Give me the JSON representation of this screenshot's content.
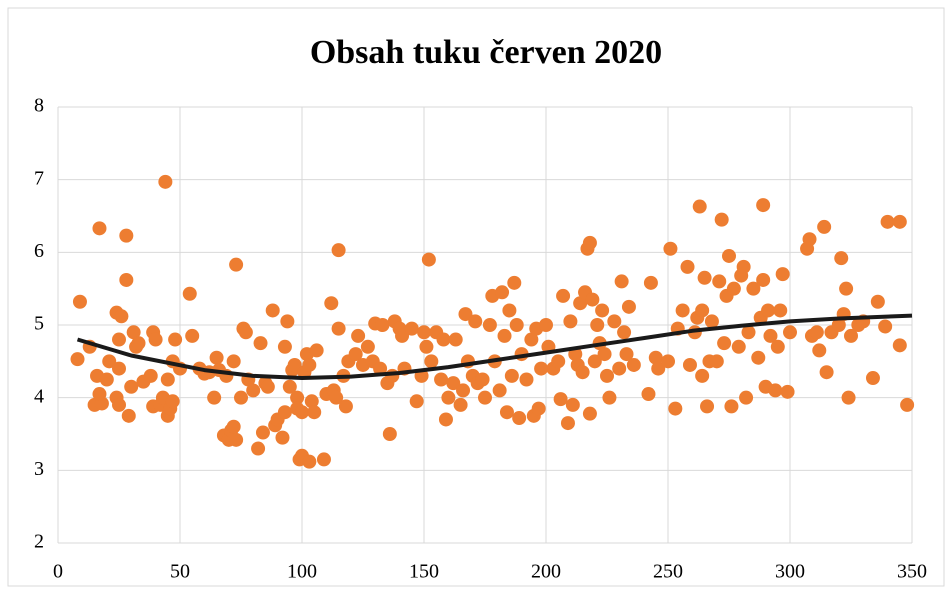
{
  "chart_data": {
    "type": "scatter",
    "title": "Obsah tuku červen 2020",
    "xlim": [
      0,
      350
    ],
    "xticks": [
      0,
      50,
      100,
      150,
      200,
      250,
      300,
      350
    ],
    "ylim": [
      2,
      8
    ],
    "yticks": [
      2,
      3,
      4,
      5,
      6,
      7,
      8
    ],
    "grid": true,
    "series": [
      {
        "color": "#ed7d31",
        "kind": "scatter",
        "x": [
          8,
          9,
          13,
          15,
          16,
          17,
          18,
          17,
          20,
          21,
          24,
          24,
          25,
          25,
          25,
          26,
          28,
          28,
          29,
          30,
          31,
          32,
          33,
          35,
          38,
          39,
          39,
          40,
          42,
          43,
          44,
          45,
          45,
          46,
          47,
          47,
          48,
          50,
          54,
          55,
          58,
          60,
          62,
          64,
          65,
          66,
          68,
          69,
          70,
          71,
          72,
          72,
          73,
          73,
          75,
          76,
          77,
          78,
          80,
          82,
          83,
          84,
          85,
          86,
          88,
          89,
          90,
          92,
          93,
          93,
          94,
          95,
          96,
          97,
          98,
          98,
          99,
          100,
          100,
          101,
          102,
          103,
          103,
          104,
          105,
          106,
          109,
          110,
          112,
          113,
          114,
          115,
          115,
          117,
          118,
          119,
          122,
          123,
          125,
          127,
          129,
          130,
          132,
          133,
          135,
          136,
          137,
          138,
          140,
          141,
          142,
          145,
          147,
          149,
          150,
          151,
          152,
          153,
          155,
          157,
          158,
          159,
          160,
          162,
          163,
          165,
          166,
          167,
          168,
          170,
          171,
          172,
          174,
          175,
          177,
          178,
          179,
          181,
          182,
          183,
          184,
          185,
          186,
          187,
          188,
          189,
          190,
          192,
          194,
          195,
          196,
          197,
          198,
          200,
          201,
          203,
          205,
          206,
          207,
          209,
          210,
          211,
          212,
          213,
          214,
          215,
          216,
          217,
          218,
          218,
          219,
          220,
          221,
          222,
          223,
          224,
          225,
          226,
          228,
          230,
          231,
          232,
          233,
          234,
          236,
          242,
          243,
          245,
          246,
          250,
          251,
          253,
          254,
          256,
          258,
          259,
          261,
          262,
          263,
          264,
          264,
          265,
          266,
          267,
          268,
          270,
          271,
          272,
          273,
          274,
          275,
          276,
          277,
          279,
          280,
          281,
          282,
          283,
          285,
          287,
          288,
          289,
          289,
          290,
          291,
          292,
          294,
          295,
          296,
          297,
          299,
          300,
          307,
          308,
          309,
          311,
          312,
          314,
          315,
          317,
          320,
          321,
          322,
          323,
          324,
          325,
          328,
          330,
          334,
          336,
          339,
          340,
          345,
          345,
          348
        ],
        "values": [
          4.53,
          5.32,
          4.7,
          3.9,
          4.3,
          6.33,
          3.92,
          4.05,
          4.25,
          4.5,
          4.0,
          5.17,
          4.4,
          3.9,
          4.8,
          5.12,
          6.23,
          5.62,
          3.75,
          4.15,
          4.9,
          4.7,
          4.75,
          4.22,
          4.3,
          4.9,
          3.88,
          4.8,
          3.9,
          4.0,
          6.97,
          3.75,
          4.25,
          3.85,
          4.5,
          3.95,
          4.8,
          4.4,
          5.43,
          4.85,
          4.4,
          4.33,
          4.35,
          4.0,
          4.55,
          4.38,
          3.48,
          4.3,
          3.42,
          3.55,
          4.5,
          3.6,
          5.83,
          3.42,
          4.0,
          4.95,
          4.9,
          4.25,
          4.1,
          3.3,
          4.75,
          3.52,
          4.2,
          4.15,
          5.2,
          3.62,
          3.7,
          3.45,
          3.8,
          4.7,
          5.05,
          4.15,
          4.38,
          4.45,
          4.0,
          3.85,
          3.15,
          3.2,
          3.8,
          4.35,
          4.6,
          4.45,
          3.12,
          3.95,
          3.8,
          4.65,
          3.15,
          4.05,
          5.3,
          4.1,
          4.0,
          6.03,
          4.95,
          4.3,
          3.88,
          4.5,
          4.6,
          4.85,
          4.45,
          4.7,
          4.5,
          5.02,
          4.4,
          5.0,
          4.2,
          3.5,
          4.3,
          5.05,
          4.95,
          4.85,
          4.4,
          4.95,
          3.95,
          4.3,
          4.9,
          4.7,
          5.9,
          4.5,
          4.9,
          4.25,
          4.8,
          3.7,
          4.0,
          4.2,
          4.8,
          3.9,
          4.1,
          5.15,
          4.5,
          4.3,
          5.05,
          4.2,
          4.25,
          4.0,
          5.0,
          5.4,
          4.5,
          4.1,
          5.45,
          4.85,
          3.8,
          5.2,
          4.3,
          5.58,
          5.0,
          3.72,
          4.6,
          4.25,
          4.8,
          3.75,
          4.95,
          3.85,
          4.4,
          5.0,
          4.7,
          4.4,
          4.5,
          3.98,
          5.4,
          3.65,
          5.05,
          3.9,
          4.6,
          4.45,
          5.3,
          4.35,
          5.45,
          6.05,
          6.13,
          3.78,
          5.35,
          4.5,
          5.0,
          4.75,
          5.2,
          4.6,
          4.3,
          4.0,
          5.05,
          4.4,
          5.6,
          4.9,
          4.6,
          5.25,
          4.45,
          4.05,
          5.58,
          4.55,
          4.4,
          4.5,
          6.05,
          3.85,
          4.95,
          5.2,
          5.8,
          4.45,
          4.9,
          5.1,
          6.63,
          4.3,
          5.2,
          5.65,
          3.88,
          4.5,
          5.05,
          4.5,
          5.6,
          6.45,
          4.75,
          5.4,
          5.95,
          3.88,
          5.5,
          4.7,
          5.68,
          5.8,
          4.0,
          4.9,
          5.5,
          4.55,
          5.1,
          6.65,
          5.62,
          4.15,
          5.2,
          4.85,
          4.1,
          4.7,
          5.2,
          5.7,
          4.08,
          4.9,
          6.05,
          6.18,
          4.85,
          4.9,
          4.65,
          6.35,
          4.35,
          4.9,
          5.0,
          5.92,
          5.15,
          5.5,
          4.0,
          4.85,
          5.0,
          5.05,
          4.27,
          5.32,
          4.98,
          6.42,
          6.42,
          4.72,
          3.9
        ]
      },
      {
        "color": "#1a1a1a",
        "kind": "line",
        "x": [
          8,
          30,
          60,
          80,
          100,
          120,
          140,
          160,
          180,
          200,
          220,
          240,
          260,
          280,
          300,
          320,
          350
        ],
        "values": [
          4.8,
          4.58,
          4.38,
          4.3,
          4.27,
          4.29,
          4.34,
          4.42,
          4.52,
          4.62,
          4.72,
          4.82,
          4.92,
          4.99,
          5.05,
          5.09,
          5.13
        ]
      }
    ]
  }
}
